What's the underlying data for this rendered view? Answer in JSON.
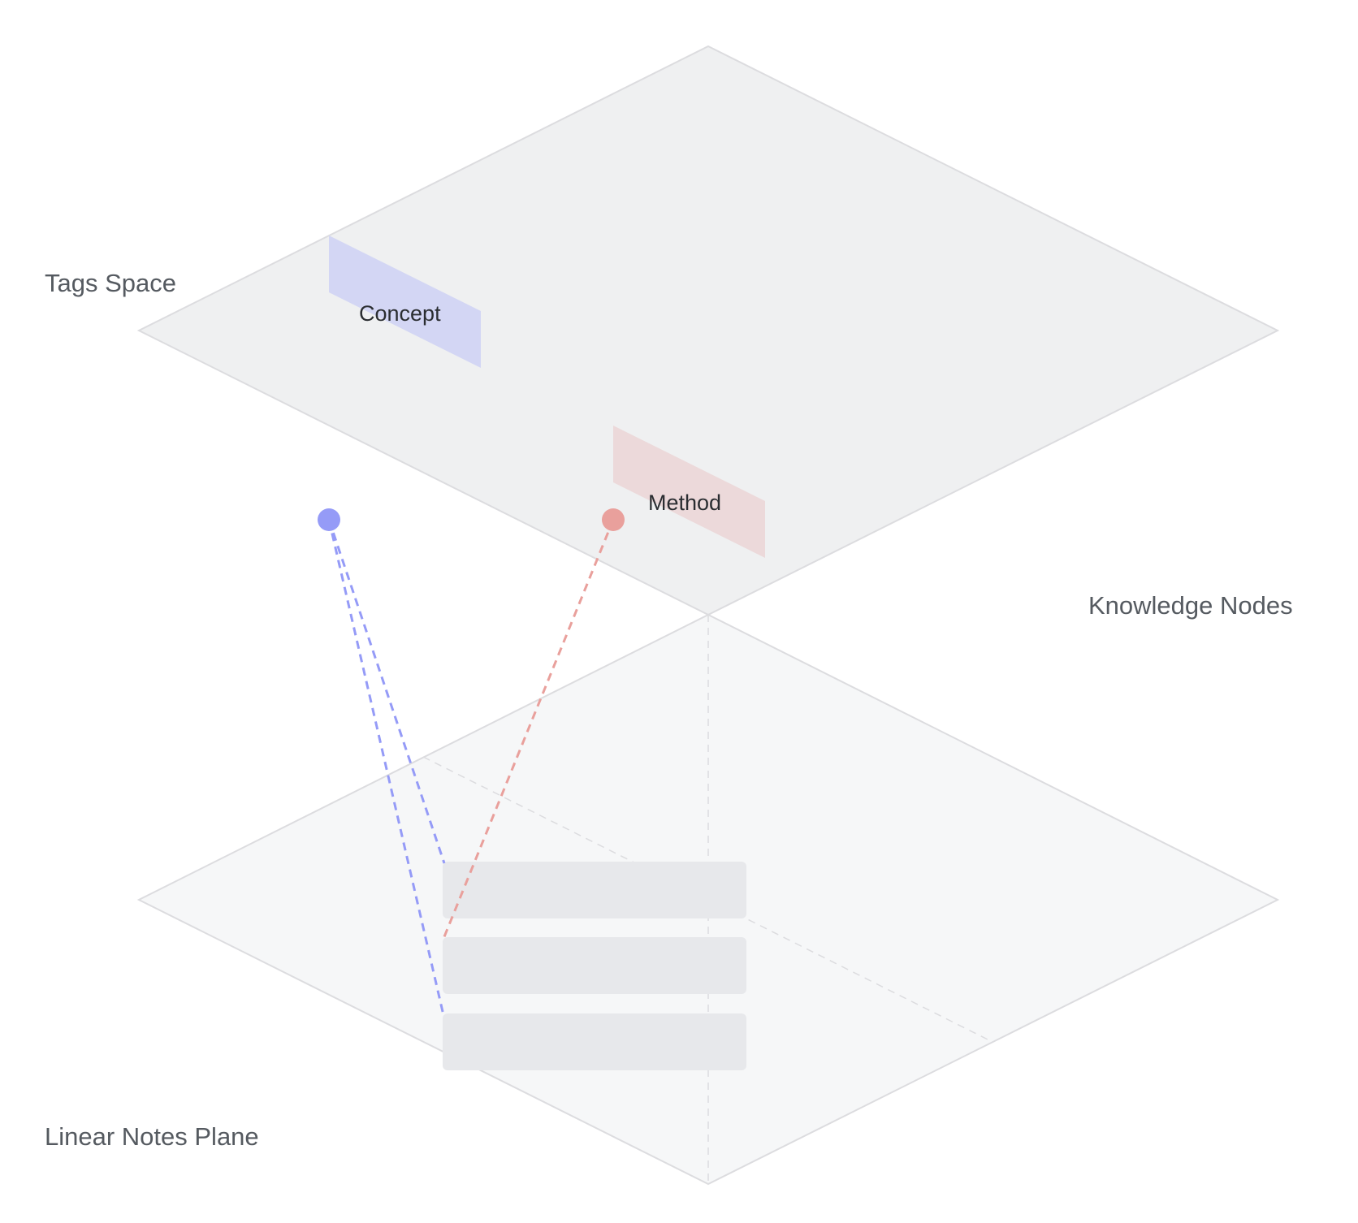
{
  "planes": {
    "tags_space": {
      "label": "Tags Space"
    },
    "linear_notes": {
      "label": "Linear Notes Plane"
    }
  },
  "knowledge_nodes": {
    "label": "Knowledge Nodes"
  },
  "tags": [
    {
      "label": "Concept",
      "color": "#d3d6f4"
    },
    {
      "label": "Method",
      "color": "#ecd9da"
    }
  ],
  "nodes": [
    {
      "tag": "Concept",
      "color": "#959bf7"
    },
    {
      "tag": "Method",
      "color": "#e9a09c"
    }
  ],
  "note_rows": 3,
  "connections": [
    {
      "from": "Concept",
      "to_row": 1,
      "color": "#959bf7"
    },
    {
      "from": "Concept",
      "to_row": 3,
      "color": "#959bf7"
    },
    {
      "from": "Method",
      "to_row": 2,
      "color": "#e9a09c"
    }
  ],
  "colors": {
    "top_plane": "#eff0f1",
    "bottom_plane": "#f6f7f8",
    "plane_stroke": "#dcdcdf",
    "note_fill": "#e7e8eb"
  }
}
